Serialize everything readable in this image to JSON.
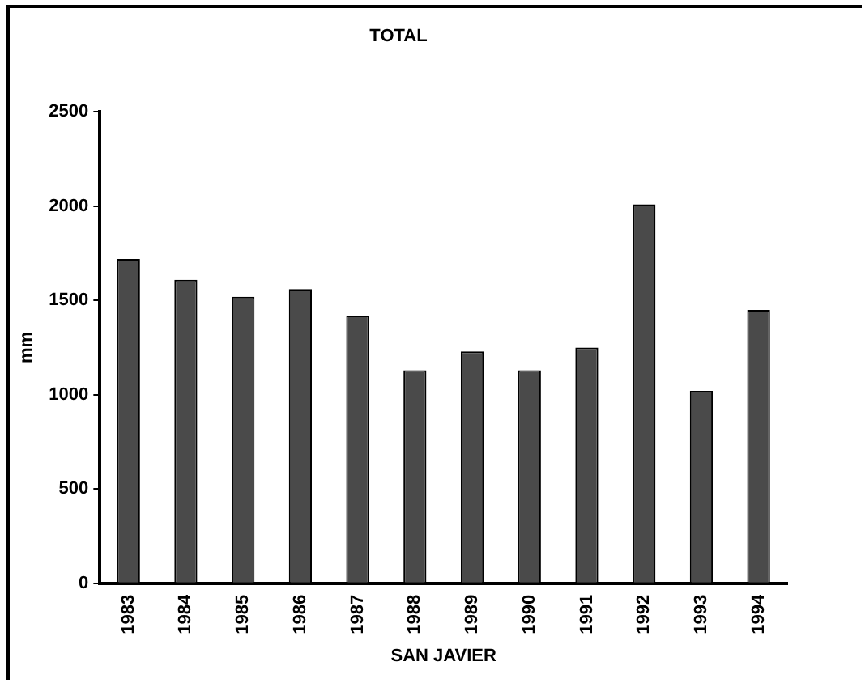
{
  "chart_data": {
    "type": "bar",
    "title": "TOTAL",
    "xlabel": "SAN JAVIER",
    "ylabel": "mm",
    "categories": [
      "1983",
      "1984",
      "1985",
      "1986",
      "1987",
      "1988",
      "1989",
      "1990",
      "1991",
      "1992",
      "1993",
      "1994"
    ],
    "values": [
      1720,
      1610,
      1520,
      1560,
      1420,
      1130,
      1230,
      1130,
      1250,
      2010,
      1020,
      1450
    ],
    "color": "#4a4a4a",
    "ylim": [
      0,
      2500
    ],
    "yticks": [
      0,
      500,
      1000,
      1500,
      2000,
      2500
    ],
    "grid": false,
    "legend": false
  }
}
